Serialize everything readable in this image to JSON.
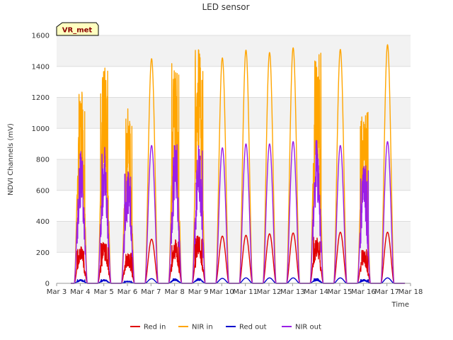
{
  "chart_data": {
    "type": "line",
    "title": "LED sensor",
    "xlabel": "Time",
    "ylabel": "NDVI Channels (mV)",
    "ylim": [
      0,
      1600
    ],
    "yticks": [
      0,
      200,
      400,
      600,
      800,
      1000,
      1200,
      1400,
      1600
    ],
    "xlim": [
      "Mar 3",
      "Mar 18"
    ],
    "xticks": [
      "Mar 3",
      "Mar 4",
      "Mar 5",
      "Mar 6",
      "Mar 7",
      "Mar 8",
      "Mar 9",
      "Mar 10",
      "Mar 11",
      "Mar 12",
      "Mar 13",
      "Mar 14",
      "Mar 15",
      "Mar 16",
      "Mar 17",
      "Mar 18"
    ],
    "grid": true,
    "legend_position": "bottom",
    "badge": "VR_met",
    "day_starts": [
      "Mar 3",
      "Mar 4",
      "Mar 5",
      "Mar 6",
      "Mar 7",
      "Mar 8",
      "Mar 9",
      "Mar 10",
      "Mar 11",
      "Mar 12",
      "Mar 13",
      "Mar 14",
      "Mar 15",
      "Mar 16",
      "Mar 17"
    ],
    "series": [
      {
        "name": "Red in",
        "color": "#e00000",
        "daily_peaks": [
          240,
          270,
          200,
          285,
          285,
          310,
          305,
          310,
          320,
          325,
          300,
          330,
          220,
          330
        ],
        "noisy_days": [
          true,
          true,
          true,
          false,
          true,
          true,
          false,
          false,
          false,
          false,
          true,
          false,
          true,
          false
        ]
      },
      {
        "name": "NIR in",
        "color": "#ffa500",
        "daily_peaks": [
          1280,
          1410,
          1130,
          1450,
          1420,
          1510,
          1455,
          1505,
          1490,
          1520,
          1500,
          1510,
          1110,
          1540
        ],
        "noisy_days": [
          true,
          true,
          true,
          false,
          true,
          true,
          false,
          false,
          false,
          false,
          true,
          false,
          true,
          false
        ]
      },
      {
        "name": "Red out",
        "color": "#0000cc",
        "daily_peaks": [
          25,
          25,
          15,
          30,
          30,
          32,
          32,
          35,
          35,
          35,
          30,
          35,
          25,
          35
        ],
        "noisy_days": [
          true,
          true,
          true,
          false,
          true,
          true,
          false,
          false,
          false,
          false,
          true,
          false,
          true,
          false
        ]
      },
      {
        "name": "NIR out",
        "color": "#9a1fe6",
        "daily_peaks": [
          860,
          890,
          740,
          890,
          900,
          925,
          875,
          900,
          900,
          915,
          960,
          890,
          760,
          915
        ],
        "noisy_days": [
          true,
          true,
          true,
          false,
          true,
          true,
          false,
          false,
          false,
          false,
          true,
          false,
          true,
          false
        ]
      }
    ]
  }
}
